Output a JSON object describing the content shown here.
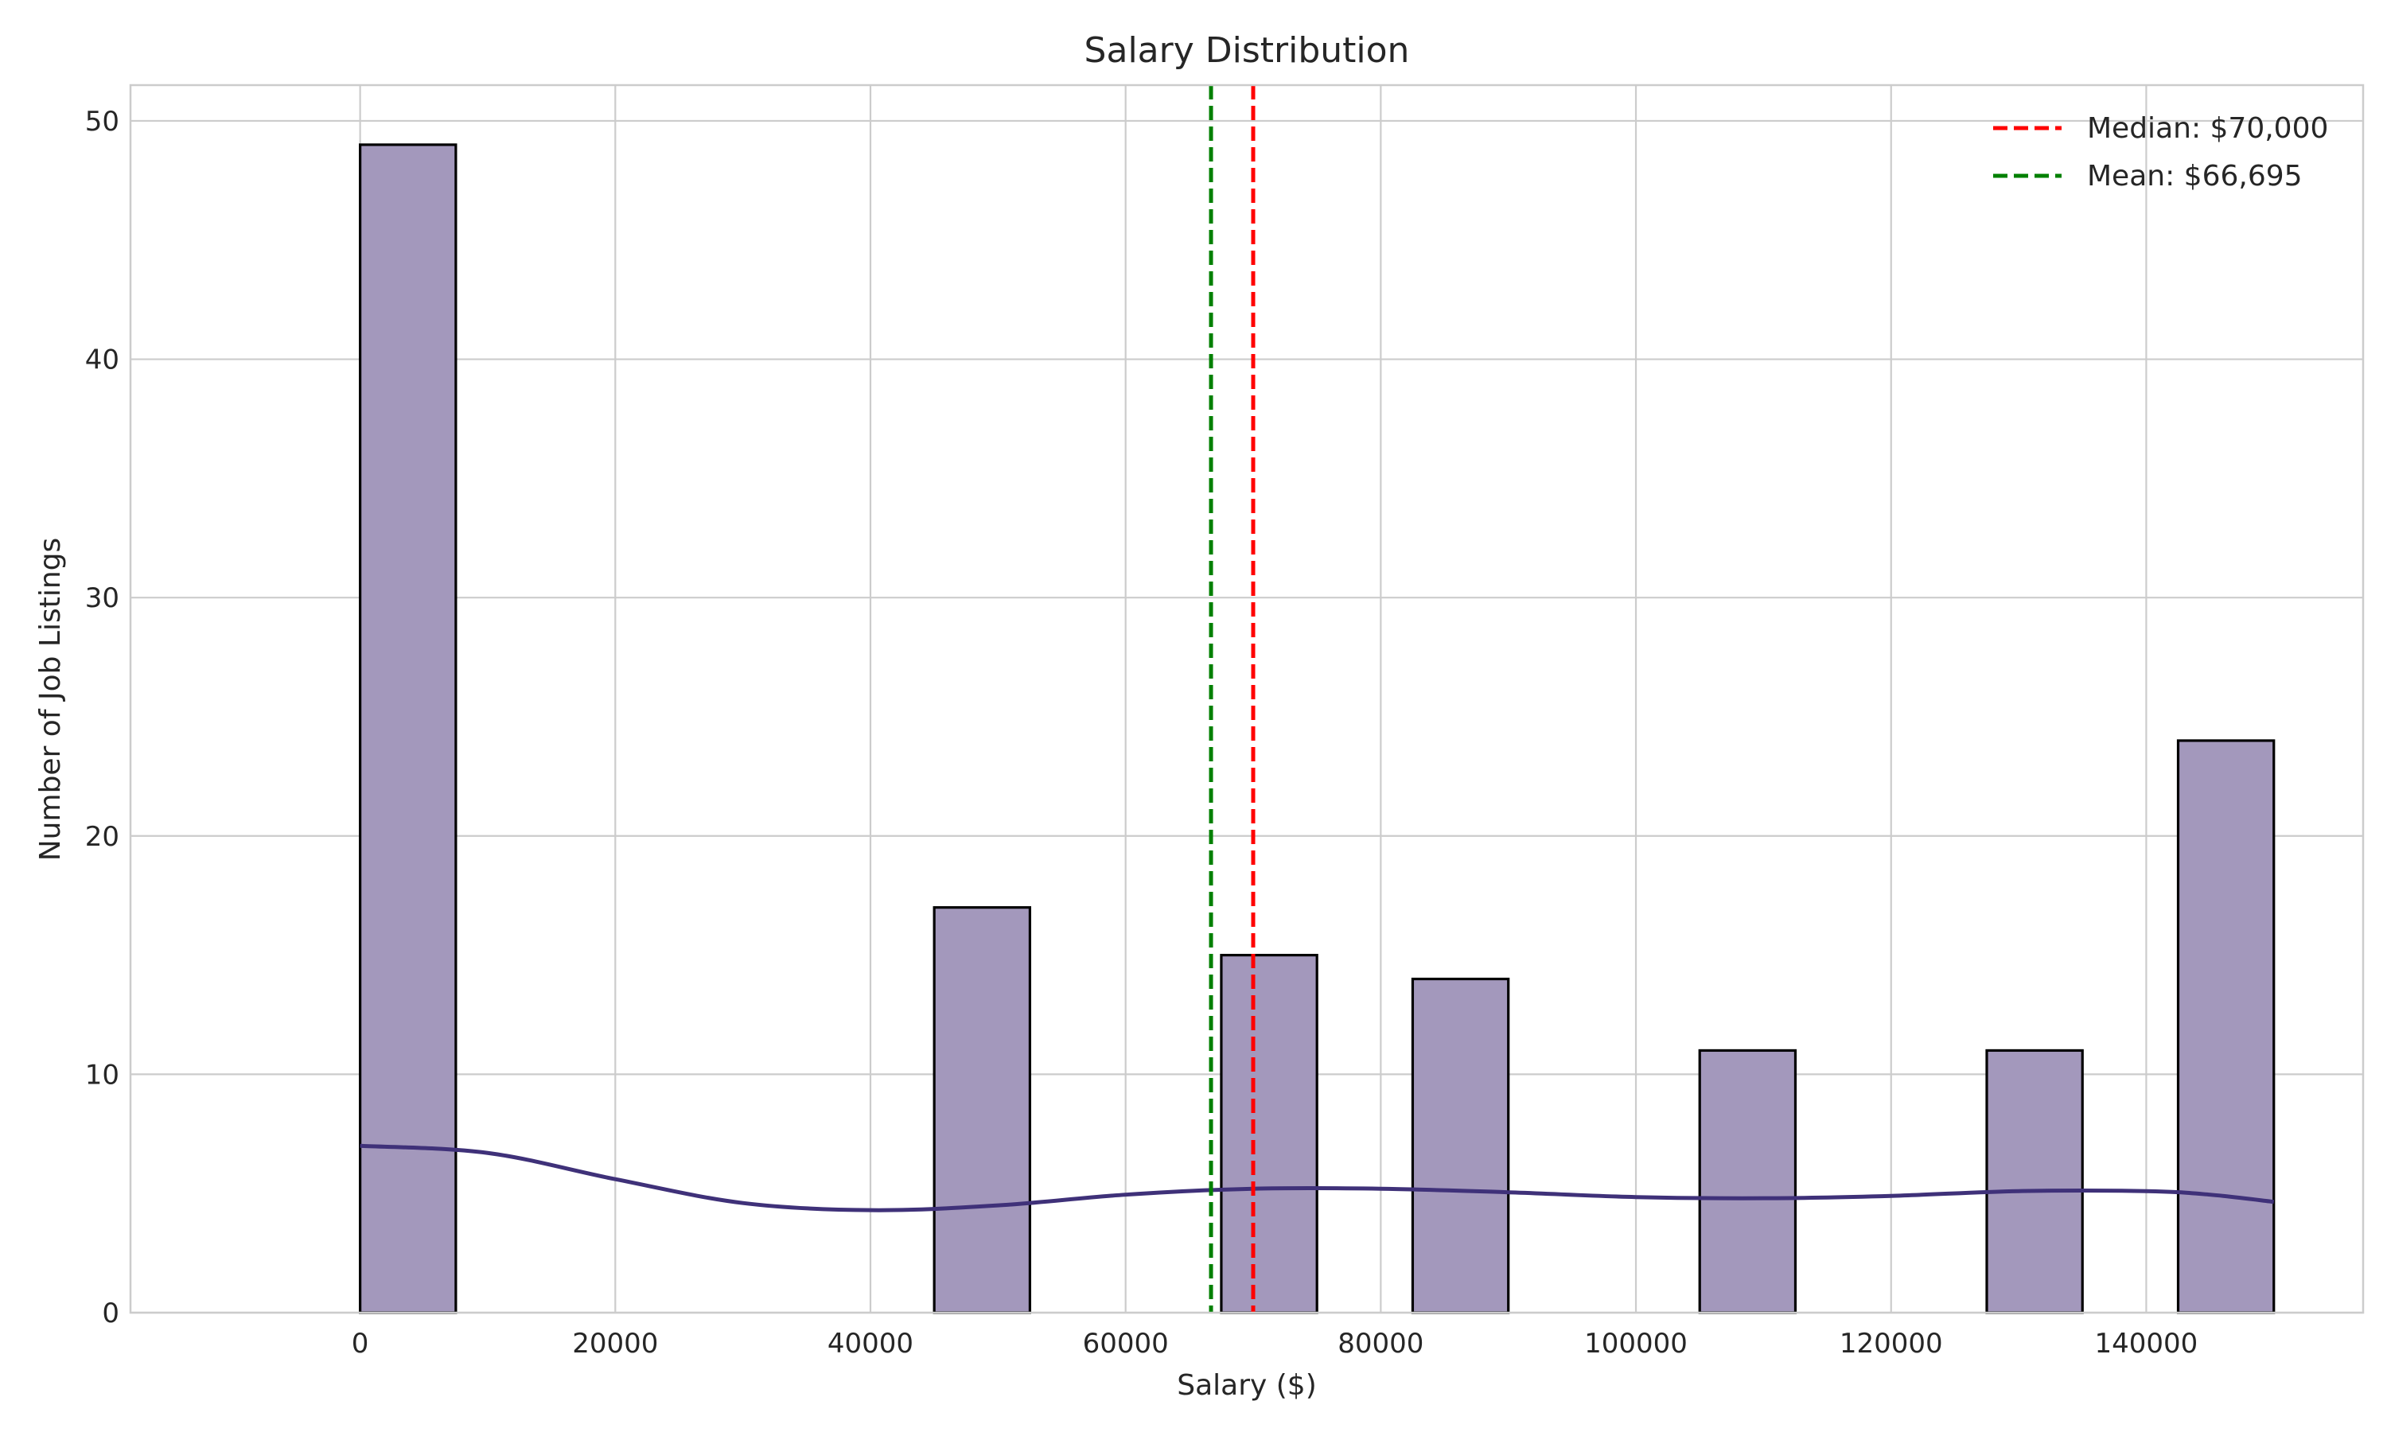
{
  "chart_data": {
    "type": "bar",
    "title": "Salary Distribution",
    "xlabel": "Salary ($)",
    "ylabel": "Number of Job Listings",
    "xlim": [
      -18000,
      157000
    ],
    "ylim": [
      0,
      51.5
    ],
    "xticks": [
      0,
      20000,
      40000,
      60000,
      80000,
      100000,
      120000,
      140000
    ],
    "yticks": [
      0,
      10,
      20,
      30,
      40,
      50
    ],
    "bin_width": 7500,
    "bins": [
      {
        "start": 0,
        "end": 7500,
        "count": 49
      },
      {
        "start": 45000,
        "end": 52500,
        "count": 17
      },
      {
        "start": 67500,
        "end": 75000,
        "count": 15
      },
      {
        "start": 82500,
        "end": 90000,
        "count": 14
      },
      {
        "start": 105000,
        "end": 112500,
        "count": 11
      },
      {
        "start": 127500,
        "end": 135000,
        "count": 11
      },
      {
        "start": 142500,
        "end": 150000,
        "count": 24
      }
    ],
    "kde": {
      "x": [
        0,
        10000,
        20000,
        30000,
        40000,
        50000,
        60000,
        70000,
        80000,
        90000,
        100000,
        110000,
        120000,
        130000,
        140000,
        145000,
        150000
      ],
      "y": [
        7.0,
        6.7,
        5.6,
        4.6,
        4.3,
        4.5,
        4.95,
        5.2,
        5.2,
        5.05,
        4.85,
        4.8,
        4.9,
        5.1,
        5.1,
        4.95,
        4.65
      ]
    },
    "reference_lines": [
      {
        "name": "Median: $70,000",
        "x": 70000,
        "color": "#ff0000",
        "style": "dashed"
      },
      {
        "name": "Mean: $66,695",
        "x": 66695,
        "color": "#008000",
        "style": "dashed"
      }
    ],
    "colors": {
      "bar_fill": "#a398bc",
      "bar_edge": "#000000",
      "kde_line": "#3f3179"
    },
    "grid": true,
    "legend_position": "upper right"
  }
}
